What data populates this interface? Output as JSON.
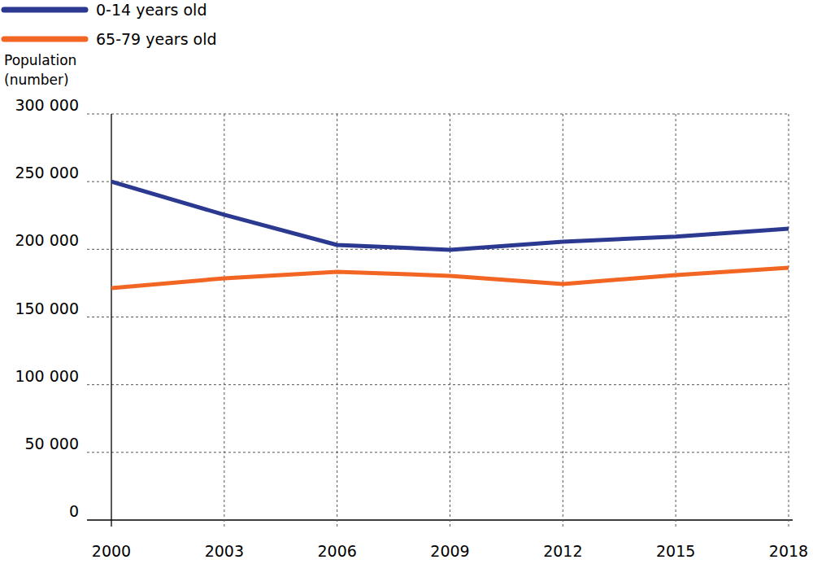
{
  "chart_data": {
    "type": "line",
    "y_label": "Population (number)",
    "x": [
      2000,
      2003,
      2006,
      2009,
      2012,
      2015,
      2018
    ],
    "series": [
      {
        "name": "0-14 years old",
        "color": "#2b3990",
        "values": [
          250000,
          225500,
          203200,
          199600,
          205600,
          209400,
          215200
        ]
      },
      {
        "name": "65-79 years old",
        "color": "#f26522",
        "values": [
          171300,
          178600,
          183400,
          180400,
          174300,
          181000,
          186400
        ]
      }
    ],
    "xlim": [
      2000,
      2018
    ],
    "xticks": [
      2000,
      2003,
      2006,
      2009,
      2012,
      2015,
      2018
    ],
    "ylim": [
      0,
      300000
    ],
    "yticks": [
      0,
      {
        "value": 50000,
        "label": "50 000"
      },
      {
        "value": 100000,
        "label": "100 000"
      },
      {
        "value": 150000,
        "label": "150 000"
      },
      {
        "value": 200000,
        "label": "200 000"
      },
      {
        "value": 250000,
        "label": "250 000"
      },
      {
        "value": 300000,
        "label": "300 000"
      }
    ],
    "grid": true,
    "legend": "top-left"
  }
}
